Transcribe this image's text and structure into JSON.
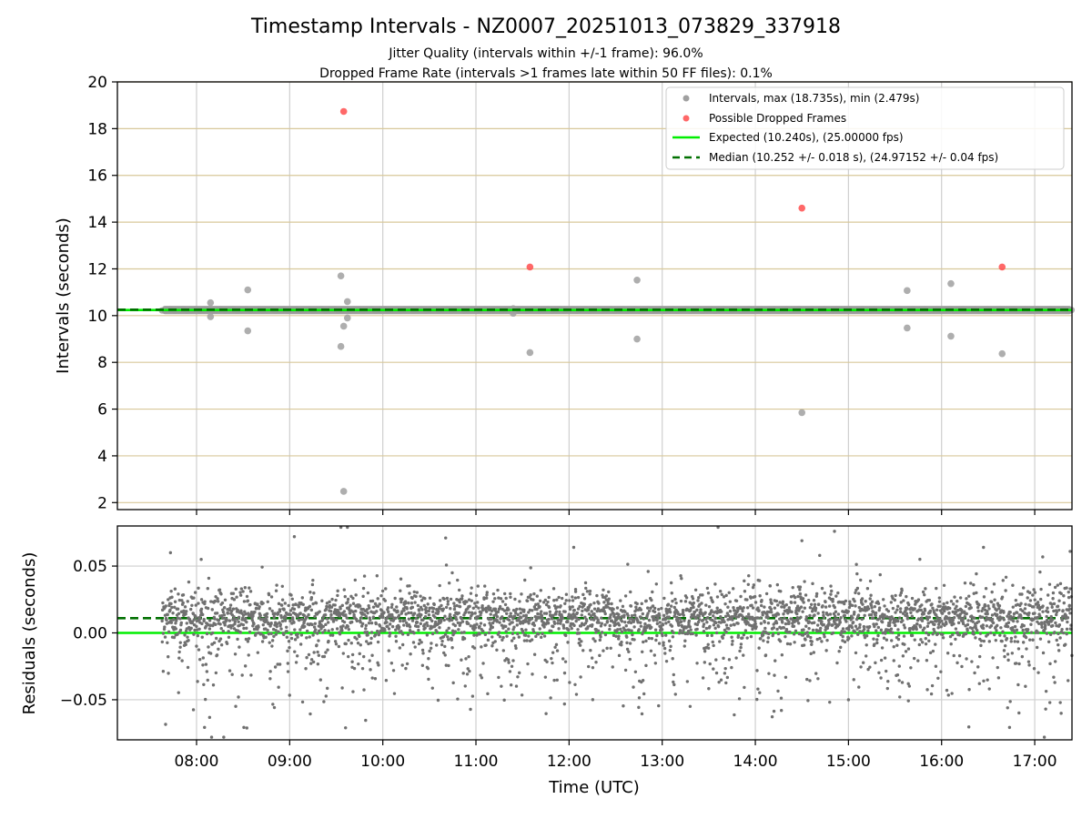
{
  "chart_data": [
    {
      "type": "scatter",
      "panel": "top",
      "title": "Timestamp Intervals - NZ0007_20251013_073829_337918",
      "subtitle_lines": [
        "Jitter Quality (intervals within +/-1 frame): 96.0%",
        "Dropped Frame Rate (intervals >1 frames late within 50 FF files): 0.1%"
      ],
      "ylabel": "Intervals (seconds)",
      "xlabel": "",
      "xlim": [
        7.15,
        17.4
      ],
      "ylim": [
        1.7,
        20
      ],
      "yticks": [
        2,
        4,
        6,
        8,
        10,
        12,
        14,
        16,
        18,
        20
      ],
      "ytick_labels": [
        "2",
        "4",
        "6",
        "8",
        "10",
        "12",
        "14",
        "16",
        "18",
        "20"
      ],
      "xticks": [
        8,
        9,
        10,
        11,
        12,
        13,
        14,
        15,
        16,
        17
      ],
      "expected_value": 10.24,
      "median_value": 10.252,
      "dense_band": {
        "x_start": 7.63,
        "x_end": 17.4,
        "y_center": 10.24,
        "y_halfwidth": 0.06
      },
      "series": [
        {
          "name": "Intervals, max (18.735s), min (2.479s)",
          "color": "#a0a0a0",
          "points": [
            [
              8.15,
              10.55
            ],
            [
              8.15,
              9.95
            ],
            [
              8.55,
              11.1
            ],
            [
              8.55,
              9.35
            ],
            [
              9.55,
              11.7
            ],
            [
              9.55,
              8.68
            ],
            [
              9.58,
              9.55
            ],
            [
              9.62,
              10.6
            ],
            [
              9.62,
              9.9
            ],
            [
              9.58,
              2.48
            ],
            [
              11.4,
              10.3
            ],
            [
              11.4,
              10.1
            ],
            [
              11.58,
              8.42
            ],
            [
              12.73,
              11.52
            ],
            [
              12.73,
              9.0
            ],
            [
              14.5,
              5.85
            ],
            [
              15.63,
              11.07
            ],
            [
              15.63,
              9.47
            ],
            [
              16.1,
              11.37
            ],
            [
              16.1,
              9.12
            ],
            [
              16.65,
              8.37
            ]
          ]
        },
        {
          "name": "Possible Dropped Frames",
          "color": "#ff4d4d",
          "points": [
            [
              9.58,
              18.735
            ],
            [
              11.58,
              12.08
            ],
            [
              14.5,
              14.6
            ],
            [
              16.65,
              12.08
            ]
          ]
        }
      ],
      "lines": [
        {
          "name": "Expected (10.240s), (25.00000 fps)",
          "color": "#00ee00",
          "style": "solid",
          "value": 10.24
        },
        {
          "name": "Median (10.252 +/- 0.018 s), (24.97152 +/- 0.04 fps)",
          "color": "#007000",
          "style": "dashed",
          "value": 10.252
        }
      ],
      "legend_position": "top-right"
    },
    {
      "type": "scatter",
      "panel": "bottom",
      "xlabel": "Time (UTC)",
      "ylabel": "Residuals (seconds)",
      "xlim": [
        7.15,
        17.4
      ],
      "ylim": [
        -0.08,
        0.08
      ],
      "yticks": [
        -0.05,
        0.0,
        0.05
      ],
      "ytick_labels": [
        "−0.05",
        "0.00",
        "0.05"
      ],
      "xticks": [
        8,
        9,
        10,
        11,
        12,
        13,
        14,
        15,
        16,
        17
      ],
      "xtick_labels": [
        "08:00",
        "09:00",
        "10:00",
        "11:00",
        "12:00",
        "13:00",
        "14:00",
        "15:00",
        "16:00",
        "17:00"
      ],
      "expected_residual": 0.0,
      "median_residual": 0.011,
      "residual_color": "#707070",
      "point_count": 3400,
      "x_range": [
        7.63,
        17.4
      ],
      "core_center": 0.012,
      "core_spread": 0.01,
      "tail_fraction": 0.22,
      "tail_center": -0.012,
      "tail_spread": 0.025,
      "outliers": [
        [
          7.72,
          0.06
        ],
        [
          8.05,
          0.055
        ],
        [
          8.45,
          -0.048
        ],
        [
          9.05,
          0.072
        ],
        [
          9.55,
          0.079
        ],
        [
          9.6,
          -0.071
        ],
        [
          9.62,
          0.079
        ],
        [
          12.05,
          0.064
        ],
        [
          13.3,
          -0.055
        ],
        [
          13.6,
          0.079
        ],
        [
          14.28,
          -0.058
        ],
        [
          14.5,
          0.069
        ],
        [
          14.85,
          0.076
        ],
        [
          15.0,
          -0.05
        ],
        [
          16.45,
          0.064
        ],
        [
          17.38,
          0.061
        ]
      ]
    }
  ]
}
